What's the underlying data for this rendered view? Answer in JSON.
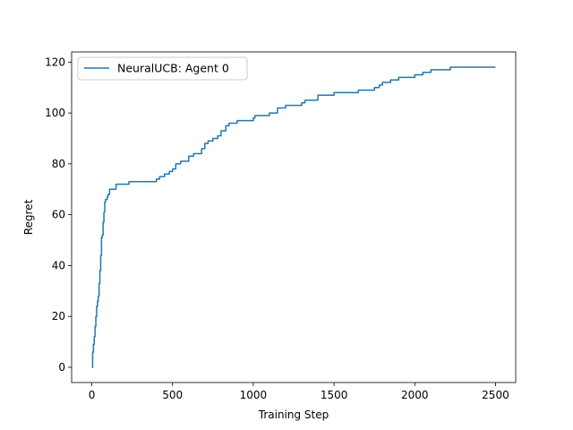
{
  "chart_data": {
    "type": "line",
    "title": "",
    "xlabel": "Training Step",
    "ylabel": "Regret",
    "xlim": [
      -125,
      2625
    ],
    "ylim": [
      -6,
      124
    ],
    "xticks": [
      0,
      500,
      1000,
      1500,
      2000,
      2500
    ],
    "yticks": [
      0,
      20,
      40,
      60,
      80,
      100,
      120
    ],
    "grid": false,
    "legend_position": "top-left",
    "colors": {
      "series": "#1f77b4",
      "axes": "#000000",
      "background": "#ffffff"
    },
    "series": [
      {
        "name": "NeuralUCB: Agent 0",
        "x": [
          0,
          5,
          10,
          15,
          20,
          25,
          30,
          35,
          40,
          45,
          50,
          55,
          60,
          65,
          70,
          75,
          80,
          85,
          90,
          95,
          100,
          110,
          120,
          130,
          150,
          175,
          200,
          230,
          260,
          300,
          350,
          390,
          400,
          420,
          450,
          480,
          500,
          520,
          550,
          580,
          600,
          630,
          650,
          680,
          700,
          720,
          750,
          780,
          800,
          830,
          850,
          880,
          900,
          950,
          1000,
          1010,
          1050,
          1100,
          1150,
          1200,
          1250,
          1300,
          1320,
          1350,
          1400,
          1450,
          1500,
          1550,
          1600,
          1650,
          1700,
          1750,
          1780,
          1800,
          1850,
          1900,
          1950,
          2000,
          2050,
          2100,
          2150,
          2200,
          2220,
          2300,
          2400,
          2500
        ],
        "y": [
          0,
          6,
          9,
          12,
          16,
          20,
          24,
          26,
          28,
          33,
          38,
          44,
          51,
          52,
          57,
          61,
          65,
          66,
          66,
          67,
          68,
          70,
          70,
          70,
          72,
          72,
          72,
          73,
          73,
          73,
          73,
          73,
          74,
          75,
          76,
          77,
          78,
          80,
          81,
          81,
          83,
          84,
          84,
          86,
          88,
          89,
          90,
          91,
          93,
          95,
          96,
          96,
          97,
          97,
          98,
          99,
          99,
          100,
          102,
          103,
          103,
          104,
          105,
          105,
          107,
          107,
          108,
          108,
          108,
          109,
          109,
          110,
          111,
          112,
          113,
          114,
          114,
          115,
          116,
          117,
          117,
          117,
          118,
          118,
          118,
          118
        ]
      }
    ]
  }
}
